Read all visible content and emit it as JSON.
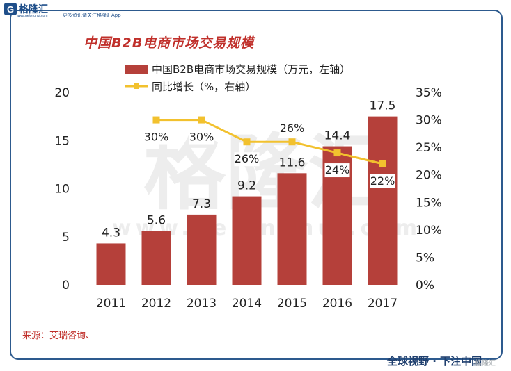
{
  "brand": {
    "logo_letter": "G",
    "name": "格隆汇",
    "url": "www.gelonghui.com",
    "slogan": "更多资讯请关注格隆汇App"
  },
  "watermark": {
    "main": "格隆汇",
    "url": "www.gelonghui.com",
    "corner": "格隆汇"
  },
  "source": "来源：艾瑞咨询、",
  "footer_slogan": "全球视野 · 下注中国",
  "colors": {
    "bar": "#b5403a",
    "line": "#f2c12e",
    "title": "#c0302b",
    "frame": "#2d5a8e"
  },
  "chart_data": {
    "type": "bar",
    "title": "中国B2B电商市场交易规模",
    "categories": [
      "2011",
      "2012",
      "2013",
      "2014",
      "2015",
      "2016",
      "2017"
    ],
    "series": [
      {
        "name": "中国B2B电商市场交易规模（万元，左轴）",
        "type": "bar",
        "axis": "left",
        "values": [
          4.3,
          5.6,
          7.3,
          9.2,
          11.6,
          14.4,
          17.5
        ],
        "labels": [
          "4.3",
          "5.6",
          "7.3",
          "9.2",
          "11.6",
          "14.4",
          "17.5"
        ]
      },
      {
        "name": "同比增长（%，右轴）",
        "type": "line",
        "axis": "right",
        "values": [
          null,
          30,
          30,
          26,
          26,
          24,
          22
        ],
        "labels": [
          "",
          "30%",
          "30%",
          "26%",
          "26%",
          "24%",
          "22%"
        ]
      }
    ],
    "y_left": {
      "min": 0,
      "max": 20,
      "ticks": [
        "0",
        "5",
        "10",
        "15",
        "20"
      ]
    },
    "y_right": {
      "min": 0,
      "max": 35,
      "ticks": [
        "0%",
        "5%",
        "10%",
        "15%",
        "20%",
        "25%",
        "30%",
        "35%"
      ]
    },
    "legend_position": "top",
    "grid": false
  }
}
